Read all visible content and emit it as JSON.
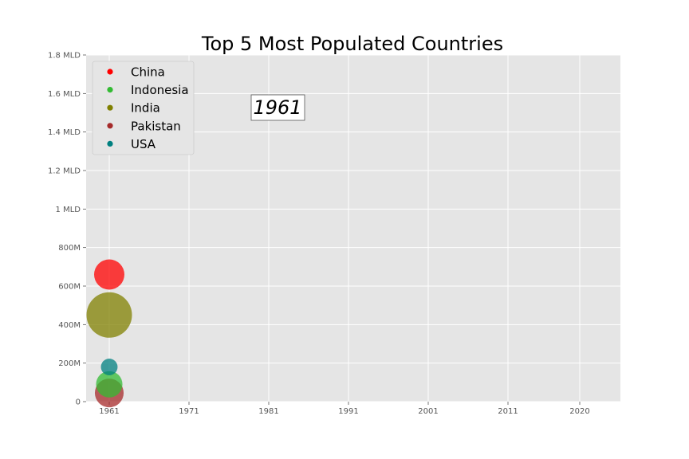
{
  "chart_data": {
    "type": "scatter",
    "title": "Top 5 Most Populated Countries",
    "xlabel": "",
    "ylabel": "",
    "xlim": [
      1958,
      2025
    ],
    "ylim": [
      0,
      1800000000
    ],
    "x_ticks": [
      {
        "value": 1961,
        "label": "1961"
      },
      {
        "value": 1971,
        "label": "1971"
      },
      {
        "value": 1981,
        "label": "1981"
      },
      {
        "value": 1991,
        "label": "1991"
      },
      {
        "value": 2001,
        "label": "2001"
      },
      {
        "value": 2011,
        "label": "2011"
      },
      {
        "value": 2020,
        "label": "2020"
      }
    ],
    "y_ticks": [
      {
        "value": 0,
        "label": "0"
      },
      {
        "value": 200000000,
        "label": "200M"
      },
      {
        "value": 400000000,
        "label": "400M"
      },
      {
        "value": 600000000,
        "label": "600M"
      },
      {
        "value": 800000000,
        "label": "800M"
      },
      {
        "value": 1000000000,
        "label": "1 MLD"
      },
      {
        "value": 1200000000,
        "label": "1.2 MLD"
      },
      {
        "value": 1400000000,
        "label": "1.4 MLD"
      },
      {
        "value": 1600000000,
        "label": "1.6 MLD"
      },
      {
        "value": 1800000000,
        "label": "1.8 MLD"
      }
    ],
    "year_label": "1961",
    "grid": true,
    "legend_placement": "top-left",
    "series": [
      {
        "name": "China",
        "color": "#ff0000",
        "x": 1961,
        "y": 660000000,
        "relative_size": 1.0
      },
      {
        "name": "Indonesia",
        "color": "#33bb33",
        "x": 1961,
        "y": 90000000,
        "relative_size": 0.87
      },
      {
        "name": "India",
        "color": "#808000",
        "x": 1961,
        "y": 450000000,
        "relative_size": 1.5
      },
      {
        "name": "Pakistan",
        "color": "#a52a2a",
        "x": 1961,
        "y": 45000000,
        "relative_size": 0.95
      },
      {
        "name": "USA",
        "color": "#008080",
        "x": 1961,
        "y": 180000000,
        "relative_size": 0.55
      }
    ]
  }
}
